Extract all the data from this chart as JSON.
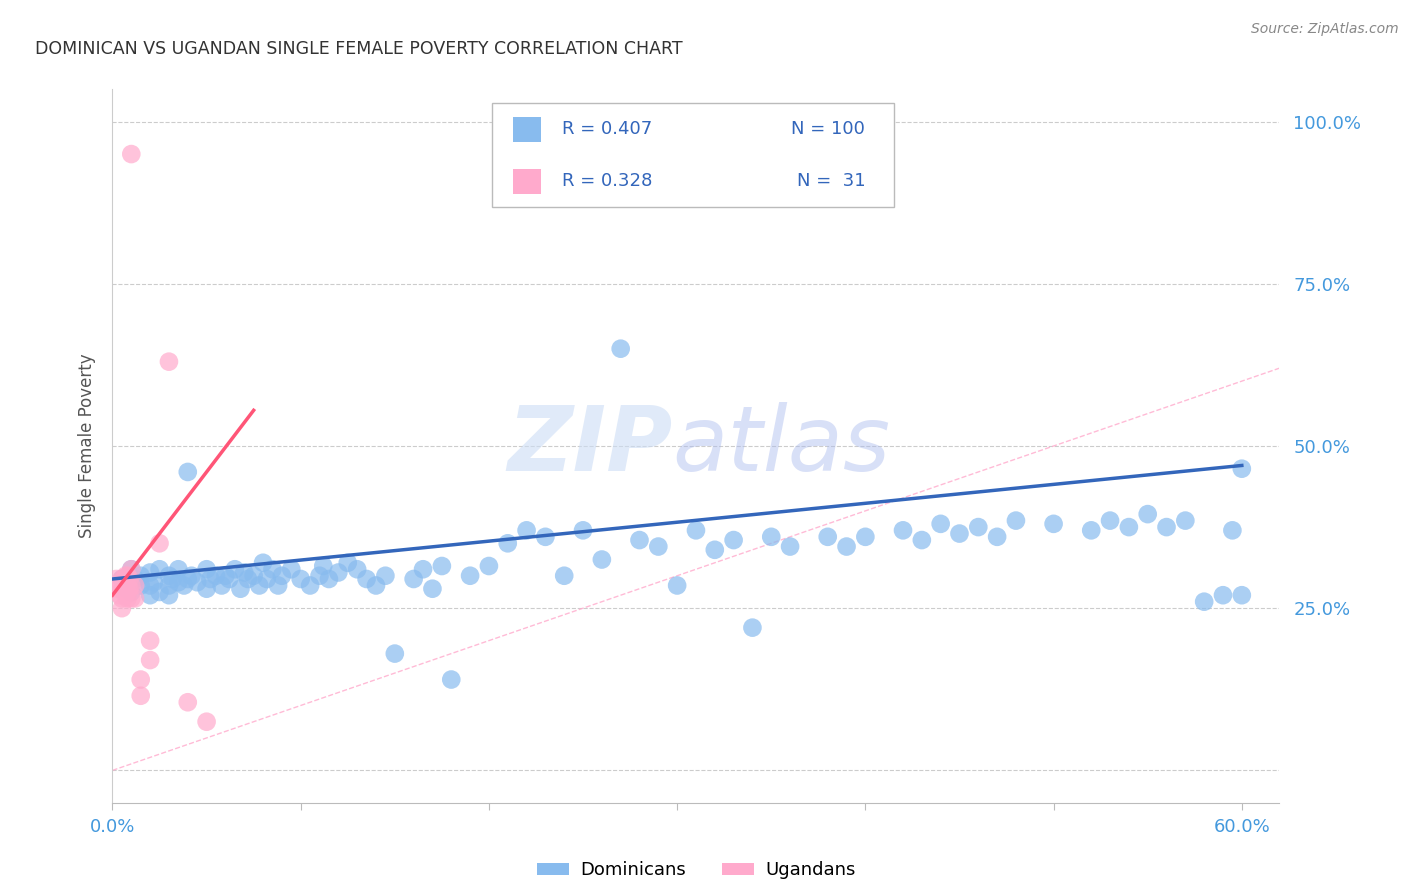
{
  "title": "DOMINICAN VS UGANDAN SINGLE FEMALE POVERTY CORRELATION CHART",
  "source": "Source: ZipAtlas.com",
  "ylabel": "Single Female Poverty",
  "xlim": [
    0.0,
    0.62
  ],
  "ylim": [
    -0.05,
    1.05
  ],
  "xticks": [
    0.0,
    0.1,
    0.2,
    0.3,
    0.4,
    0.5,
    0.6
  ],
  "xticklabels": [
    "0.0%",
    "",
    "",
    "",
    "",
    "",
    "60.0%"
  ],
  "ytick_vals": [
    0.0,
    0.25,
    0.5,
    0.75,
    1.0
  ],
  "yticklabels_right": [
    "",
    "25.0%",
    "50.0%",
    "75.0%",
    "100.0%"
  ],
  "blue_R": 0.407,
  "blue_N": 100,
  "pink_R": 0.328,
  "pink_N": 31,
  "blue_scatter_color": "#88BBEE",
  "pink_scatter_color": "#FFAACC",
  "blue_line_color": "#3366BB",
  "pink_line_color": "#FF5577",
  "diag_color": "#FFAACC",
  "grid_color": "#CCCCCC",
  "legend_text_color": "#3366BB",
  "title_color": "#333333",
  "right_tick_color": "#4499DD",
  "bottom_tick_color": "#4499DD",
  "blue_trend_x": [
    0.0,
    0.6
  ],
  "blue_trend_y": [
    0.295,
    0.47
  ],
  "pink_trend_x": [
    0.0,
    0.075
  ],
  "pink_trend_y": [
    0.27,
    0.555
  ],
  "blue_scatter_x": [
    0.005,
    0.008,
    0.01,
    0.01,
    0.012,
    0.015,
    0.015,
    0.02,
    0.02,
    0.02,
    0.022,
    0.025,
    0.025,
    0.03,
    0.03,
    0.03,
    0.032,
    0.035,
    0.035,
    0.038,
    0.04,
    0.04,
    0.042,
    0.045,
    0.05,
    0.05,
    0.052,
    0.055,
    0.058,
    0.06,
    0.062,
    0.065,
    0.068,
    0.07,
    0.072,
    0.075,
    0.078,
    0.08,
    0.082,
    0.085,
    0.088,
    0.09,
    0.095,
    0.1,
    0.105,
    0.11,
    0.112,
    0.115,
    0.12,
    0.125,
    0.13,
    0.135,
    0.14,
    0.145,
    0.15,
    0.16,
    0.165,
    0.17,
    0.175,
    0.18,
    0.19,
    0.2,
    0.21,
    0.22,
    0.23,
    0.24,
    0.25,
    0.26,
    0.27,
    0.28,
    0.29,
    0.3,
    0.31,
    0.32,
    0.33,
    0.34,
    0.35,
    0.36,
    0.38,
    0.39,
    0.4,
    0.42,
    0.43,
    0.44,
    0.45,
    0.46,
    0.47,
    0.48,
    0.5,
    0.52,
    0.53,
    0.54,
    0.55,
    0.56,
    0.57,
    0.58,
    0.59,
    0.595,
    0.6,
    0.6
  ],
  "blue_scatter_y": [
    0.295,
    0.28,
    0.31,
    0.275,
    0.295,
    0.3,
    0.285,
    0.305,
    0.285,
    0.27,
    0.29,
    0.31,
    0.275,
    0.3,
    0.285,
    0.27,
    0.295,
    0.31,
    0.29,
    0.285,
    0.46,
    0.295,
    0.3,
    0.29,
    0.28,
    0.31,
    0.295,
    0.3,
    0.285,
    0.3,
    0.295,
    0.31,
    0.28,
    0.305,
    0.295,
    0.3,
    0.285,
    0.32,
    0.295,
    0.31,
    0.285,
    0.3,
    0.31,
    0.295,
    0.285,
    0.3,
    0.315,
    0.295,
    0.305,
    0.32,
    0.31,
    0.295,
    0.285,
    0.3,
    0.18,
    0.295,
    0.31,
    0.28,
    0.315,
    0.14,
    0.3,
    0.315,
    0.35,
    0.37,
    0.36,
    0.3,
    0.37,
    0.325,
    0.65,
    0.355,
    0.345,
    0.285,
    0.37,
    0.34,
    0.355,
    0.22,
    0.36,
    0.345,
    0.36,
    0.345,
    0.36,
    0.37,
    0.355,
    0.38,
    0.365,
    0.375,
    0.36,
    0.385,
    0.38,
    0.37,
    0.385,
    0.375,
    0.395,
    0.375,
    0.385,
    0.26,
    0.27,
    0.37,
    0.27,
    0.465
  ],
  "pink_scatter_x": [
    0.002,
    0.003,
    0.004,
    0.005,
    0.005,
    0.005,
    0.005,
    0.006,
    0.006,
    0.007,
    0.007,
    0.007,
    0.008,
    0.008,
    0.008,
    0.009,
    0.009,
    0.01,
    0.01,
    0.01,
    0.01,
    0.012,
    0.012,
    0.015,
    0.015,
    0.02,
    0.02,
    0.025,
    0.03,
    0.04,
    0.05
  ],
  "pink_scatter_y": [
    0.295,
    0.28,
    0.27,
    0.295,
    0.28,
    0.265,
    0.25,
    0.28,
    0.295,
    0.27,
    0.3,
    0.285,
    0.3,
    0.285,
    0.265,
    0.295,
    0.28,
    0.31,
    0.285,
    0.265,
    0.95,
    0.285,
    0.265,
    0.14,
    0.115,
    0.2,
    0.17,
    0.35,
    0.63,
    0.105,
    0.075
  ]
}
